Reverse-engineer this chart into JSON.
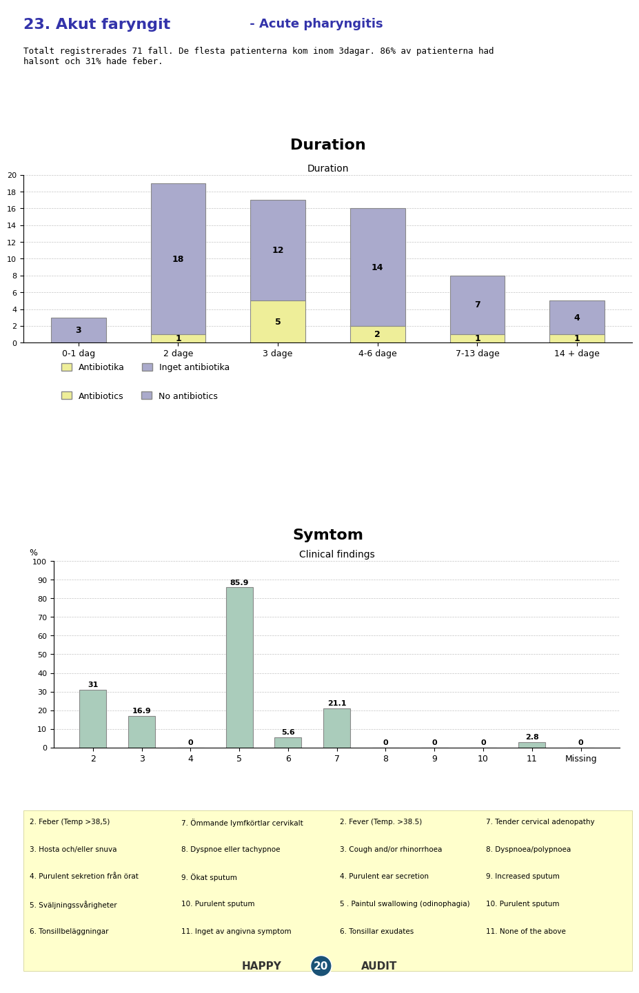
{
  "title_main": "23. Akut faryngit",
  "title_main_suffix": " - Acute pharyngitis",
  "subtitle_text": "Totalt registrerades 71 fall. De flesta patienterna kom inom 3dagar. 86% av patienterna had\nhalsont och 31% hade feber.",
  "duration_title": "Duration",
  "duration_chart_title": "Duration",
  "duration_categories": [
    "0-1 dag",
    "2 dage",
    "3 dage",
    "4-6 dage",
    "7-13 dage",
    "14 + dage"
  ],
  "duration_antibiotics": [
    0,
    1,
    5,
    2,
    1,
    1
  ],
  "duration_no_antibiotics": [
    3,
    18,
    12,
    14,
    7,
    4
  ],
  "duration_ylim": [
    0,
    20
  ],
  "duration_yticks": [
    0,
    2,
    4,
    6,
    8,
    10,
    12,
    14,
    16,
    18,
    20
  ],
  "color_antibiotics": "#eeee99",
  "color_no_antibiotics": "#aaaacc",
  "symtom_title": "Symtom",
  "symtom_chart_title": "Clinical findings",
  "symtom_xlabel": "%",
  "symtom_categories": [
    "2",
    "3",
    "4",
    "5",
    "6",
    "7",
    "8",
    "9",
    "10",
    "11",
    "Missing"
  ],
  "symtom_values": [
    31,
    16.9,
    0,
    85.9,
    5.6,
    21.1,
    0,
    0,
    0,
    2.8,
    0
  ],
  "symtom_ylim": [
    0,
    100
  ],
  "symtom_yticks": [
    0,
    10,
    20,
    30,
    40,
    50,
    60,
    70,
    80,
    90,
    100
  ],
  "color_symtom_bar": "#aaccbb",
  "legend_sw_line1": [
    "Antibiotika",
    "Inget antibiotika"
  ],
  "legend_sw_line2": [
    "Antibiotics",
    "No antibiotics"
  ],
  "footnote_lines": [
    [
      "2. Feber (Temp >38,5)",
      "7. Ömmande lymfkörtlar cervikalt",
      "2. Fever (Temp. >38.5)",
      "7. Tender cervical adenopathy"
    ],
    [
      "3. Hosta och/eller snuva",
      "8. Dyspnoe eller tachypnoe",
      "3. Cough and/or rhinorrhoea",
      "8. Dyspnoea/polypnoea"
    ],
    [
      "4. Purulent sekretion från örat",
      "9. Ökat sputum",
      "4. Purulent ear secretion",
      "9. Increased sputum"
    ],
    [
      "5. Sväljningssvårigheter",
      "10. Purulent sputum",
      "5 . Paintul swallowing (odinophagia)",
      "10. Purulent sputum"
    ],
    [
      "6. Tonsillbeläggningar",
      "11. Inget av angivna symptom",
      "6. Tonsillar exudates",
      "11. None of the above"
    ]
  ],
  "background_color": "#ffffff",
  "footnote_bg": "#ffffcc"
}
